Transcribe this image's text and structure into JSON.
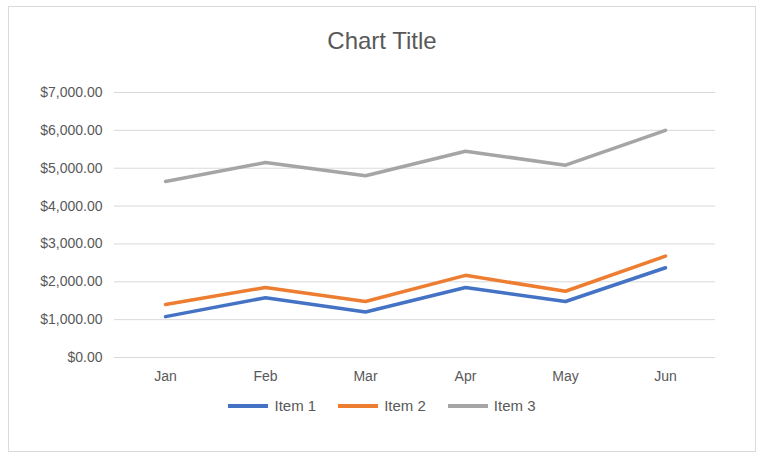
{
  "chart_data": {
    "type": "line",
    "title": "Chart Title",
    "categories": [
      "Jan",
      "Feb",
      "Mar",
      "Apr",
      "May",
      "Jun"
    ],
    "series": [
      {
        "name": "Item 1",
        "color": "#4472c4",
        "values": [
          1080,
          1580,
          1200,
          1850,
          1480,
          2370
        ]
      },
      {
        "name": "Item 2",
        "color": "#ed7d31",
        "values": [
          1400,
          1850,
          1480,
          2170,
          1750,
          2680
        ]
      },
      {
        "name": "Item 3",
        "color": "#a5a5a5",
        "values": [
          4650,
          5150,
          4800,
          5450,
          5080,
          6000
        ]
      }
    ],
    "ylim": [
      0,
      7000
    ],
    "yticks": [
      {
        "value": 0,
        "label": "$0.00"
      },
      {
        "value": 1000,
        "label": "$1,000.00"
      },
      {
        "value": 2000,
        "label": "$2,000.00"
      },
      {
        "value": 3000,
        "label": "$3,000.00"
      },
      {
        "value": 4000,
        "label": "$4,000.00"
      },
      {
        "value": 5000,
        "label": "$5,000.00"
      },
      {
        "value": 6000,
        "label": "$6,000.00"
      },
      {
        "value": 7000,
        "label": "$7,000.00"
      }
    ],
    "grid": true,
    "legend": "bottom"
  }
}
